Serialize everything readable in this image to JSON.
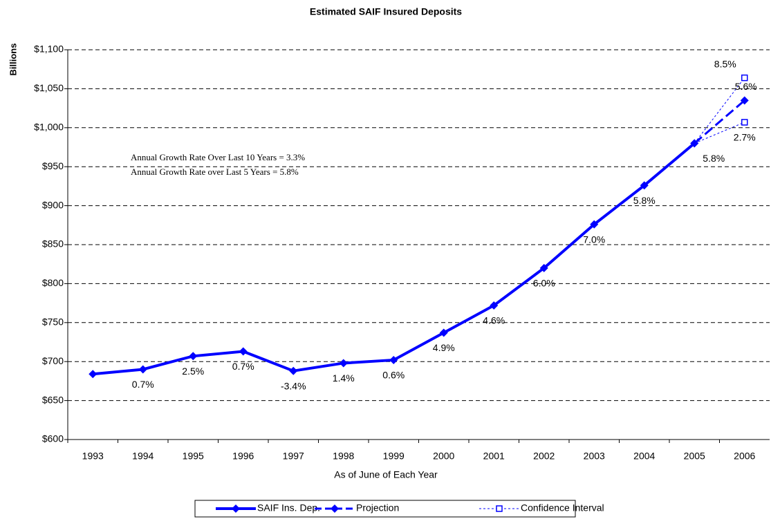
{
  "chart_data": {
    "type": "line",
    "title": "Estimated SAIF Insured Deposits",
    "x_label": "As of June of Each Year",
    "y_label": "Billions",
    "categories": [
      "1993",
      "1994",
      "1995",
      "1996",
      "1997",
      "1998",
      "1999",
      "2000",
      "2001",
      "2002",
      "2003",
      "2004",
      "2005",
      "2006"
    ],
    "ylim": [
      600,
      1100
    ],
    "yticks": [
      {
        "value": 600,
        "label": "$600"
      },
      {
        "value": 650,
        "label": "$650"
      },
      {
        "value": 700,
        "label": "$700"
      },
      {
        "value": 750,
        "label": "$750"
      },
      {
        "value": 800,
        "label": "$800"
      },
      {
        "value": 850,
        "label": "$850"
      },
      {
        "value": 900,
        "label": "$900"
      },
      {
        "value": 950,
        "label": "$950"
      },
      {
        "value": 1000,
        "label": "$1,000"
      },
      {
        "value": 1050,
        "label": "$1,050"
      },
      {
        "value": 1100,
        "label": "$1,100"
      }
    ],
    "grid": true,
    "annotations": [
      "Annual Growth Rate Over Last 10 Years = 3.3%",
      "Annual Growth Rate over Last 5 Years = 5.8%"
    ],
    "series": [
      {
        "name": "SAIF Ins. Dep.",
        "color": "#0000ff",
        "style": "solid",
        "values": [
          684,
          690,
          707,
          713,
          688,
          698,
          702,
          737,
          772,
          820,
          876,
          926,
          980,
          null
        ],
        "point_labels": [
          null,
          "0.7%",
          "2.5%",
          "0.7%",
          "-3.4%",
          "1.4%",
          "0.6%",
          "4.9%",
          "4.6%",
          "6.0%",
          "7.0%",
          "5.8%",
          "5.8%",
          null
        ]
      },
      {
        "name": "Projection",
        "color": "#0000ff",
        "style": "dashed",
        "values": [
          null,
          null,
          null,
          null,
          null,
          null,
          null,
          null,
          null,
          null,
          null,
          null,
          980,
          1035
        ],
        "point_labels": [
          null,
          null,
          null,
          null,
          null,
          null,
          null,
          null,
          null,
          null,
          null,
          null,
          null,
          "5.6%"
        ]
      },
      {
        "name": "Confidence Interval",
        "color": "#0000ff",
        "style": "dotted",
        "upper": [
          null,
          null,
          null,
          null,
          null,
          null,
          null,
          null,
          null,
          null,
          null,
          null,
          980,
          1064
        ],
        "lower": [
          null,
          null,
          null,
          null,
          null,
          null,
          null,
          null,
          null,
          null,
          null,
          null,
          980,
          1007
        ],
        "upper_labels": [
          null,
          null,
          null,
          null,
          null,
          null,
          null,
          null,
          null,
          null,
          null,
          null,
          null,
          "8.5%"
        ],
        "lower_labels": [
          null,
          null,
          null,
          null,
          null,
          null,
          null,
          null,
          null,
          null,
          null,
          null,
          null,
          "2.7%"
        ]
      }
    ]
  }
}
